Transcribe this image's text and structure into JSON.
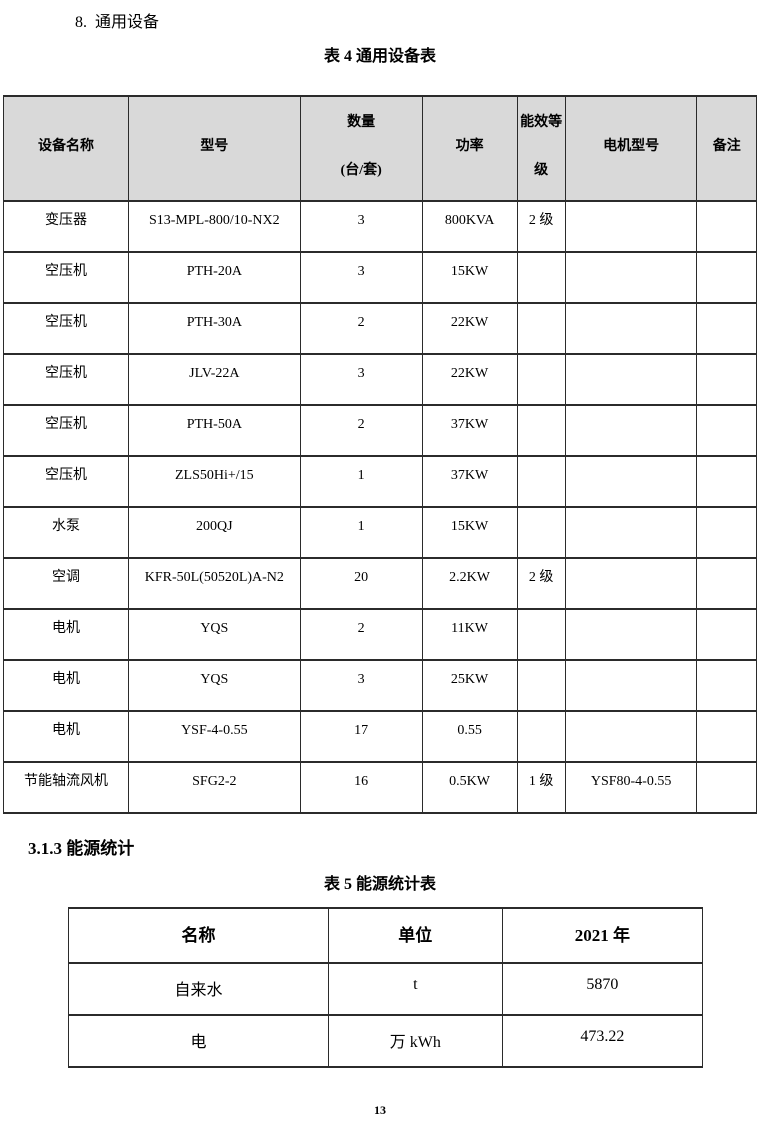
{
  "page": {
    "section_heading": "8.  通用设备",
    "subsection_heading": "3.1.3 能源统计",
    "page_number": "13"
  },
  "colors": {
    "table_header_background": "#d9d9d9",
    "border": "#2b2b2b",
    "text": "#000000"
  },
  "table4": {
    "title": "表 4 通用设备表",
    "columns": [
      "设备名称",
      "型号",
      "数量\n(台/套)",
      "功率",
      "能效等\n级",
      "电机型号",
      "备注"
    ],
    "rows": [
      [
        "变压器",
        "S13-MPL-800/10-NX2",
        "3",
        "800KVA",
        "2 级",
        "",
        ""
      ],
      [
        "空压机",
        "PTH-20A",
        "3",
        "15KW",
        "",
        "",
        ""
      ],
      [
        "空压机",
        "PTH-30A",
        "2",
        "22KW",
        "",
        "",
        ""
      ],
      [
        "空压机",
        "JLV-22A",
        "3",
        "22KW",
        "",
        "",
        ""
      ],
      [
        "空压机",
        "PTH-50A",
        "2",
        "37KW",
        "",
        "",
        ""
      ],
      [
        "空压机",
        "ZLS50Hi+/15",
        "1",
        "37KW",
        "",
        "",
        ""
      ],
      [
        "水泵",
        "200QJ",
        "1",
        "15KW",
        "",
        "",
        ""
      ],
      [
        "空调",
        "KFR-50L(50520L)A-N2",
        "20",
        "2.2KW",
        "2 级",
        "",
        ""
      ],
      [
        "电机",
        "YQS",
        "2",
        "11KW",
        "",
        "",
        ""
      ],
      [
        "电机",
        "YQS",
        "3",
        "25KW",
        "",
        "",
        ""
      ],
      [
        "电机",
        "YSF-4-0.55",
        "17",
        "0.55",
        "",
        "",
        ""
      ],
      [
        "节能轴流风机",
        "SFG2-2",
        "16",
        "0.5KW",
        "1 级",
        "YSF80-4-0.55",
        ""
      ]
    ]
  },
  "table5": {
    "title": "表 5 能源统计表",
    "columns": [
      "名称",
      "单位",
      "2021 年"
    ],
    "rows": [
      [
        "自来水",
        "t",
        "5870"
      ],
      [
        "电",
        "万 kWh",
        "473.22"
      ]
    ]
  }
}
